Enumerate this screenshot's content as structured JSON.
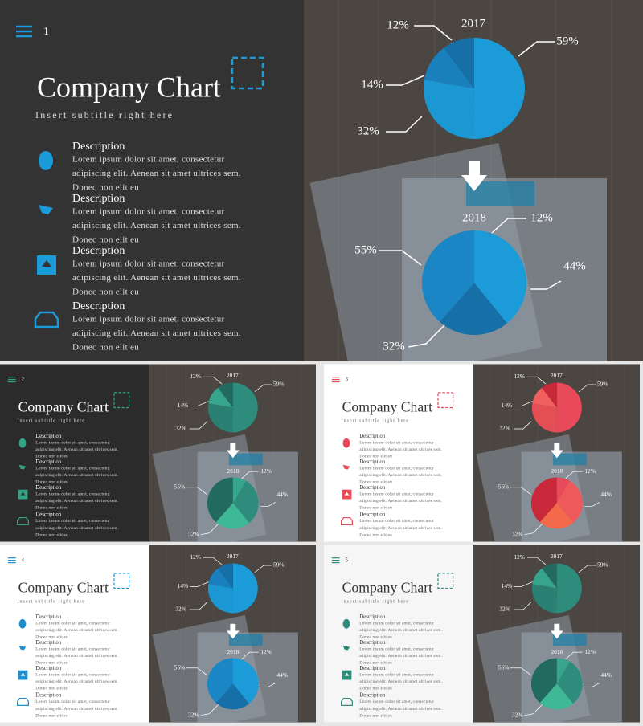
{
  "slides": [
    {
      "number": 1,
      "title": "Company Chart",
      "subtitle": "Insert subtitle right here",
      "items": [
        {
          "heading": "Description",
          "lines": [
            "Lorem ipsum dolor sit amet, consectetur",
            "adipiscing elit. Aenean sit amet ultrices sem.",
            "Donec non elit eu"
          ]
        },
        {
          "heading": "Description",
          "lines": [
            "Lorem ipsum dolor sit amet, consectetur",
            "adipiscing elit. Aenean sit amet ultrices sem.",
            "Donec non elit eu"
          ]
        },
        {
          "heading": "Description",
          "lines": [
            "Lorem ipsum dolor sit amet, consectetur",
            "adipiscing elit. Aenean sit amet ultrices sem.",
            "Donec non elit eu"
          ]
        },
        {
          "heading": "Description",
          "lines": [
            "Lorem ipsum dolor sit amet, consectetur",
            "adipiscing elit. Aenean sit amet ultrices sem.",
            "Donec non elit eu"
          ]
        }
      ],
      "charts": [
        {
          "type": "pie",
          "title": "2017",
          "values": [
            59,
            32,
            14,
            12
          ],
          "value_labels": [
            "59%",
            "32%",
            "14%",
            "12%"
          ],
          "colors": [
            "#1b9cd8",
            "#1b97d3",
            "#1a7fbd",
            "#166fa6"
          ]
        },
        {
          "type": "pie",
          "title": "2018",
          "values": [
            12,
            44,
            32,
            55
          ],
          "value_labels": [
            "12%",
            "44%",
            "32%",
            "55%"
          ],
          "colors": [
            "#1b9cd8",
            "#1b9cd8",
            "#166fa6",
            "#1b86c6"
          ]
        }
      ]
    },
    {
      "number": 2,
      "title": "Company Chart",
      "subtitle": "Insert subtitle right here",
      "items": [
        {
          "heading": "Description",
          "lines": [
            "Lorem ipsum dolor sit amet, consectetur",
            "adipiscing elit. Aenean sit amet ultrices sem.",
            "Donec non elit eu"
          ]
        },
        {
          "heading": "Description",
          "lines": [
            "Lorem ipsum dolor sit amet, consectetur",
            "adipiscing elit. Aenean sit amet ultrices sem.",
            "Donec non elit eu"
          ]
        },
        {
          "heading": "Description",
          "lines": [
            "Lorem ipsum dolor sit amet, consectetur",
            "adipiscing elit. Aenean sit amet ultrices sem.",
            "Donec non elit eu"
          ]
        },
        {
          "heading": "Description",
          "lines": [
            "Lorem ipsum dolor sit amet, consectetur",
            "adipiscing elit. Aenean sit amet ultrices sem.",
            "Donec non elit eu"
          ]
        }
      ],
      "charts": [
        {
          "type": "pie",
          "title": "2017",
          "values": [
            59,
            32,
            14,
            12
          ],
          "value_labels": [
            "59%",
            "32%",
            "14%",
            "12%"
          ],
          "colors": [
            "#2e8c7c",
            "#2a8072",
            "#37a58d",
            "#226a5f"
          ]
        },
        {
          "type": "pie",
          "title": "2018",
          "values": [
            12,
            44,
            32,
            55
          ],
          "value_labels": [
            "12%",
            "44%",
            "32%",
            "55%"
          ],
          "colors": [
            "#37a58d",
            "#2e8c7c",
            "#3fb896",
            "#226a5f"
          ]
        }
      ]
    },
    {
      "number": 3,
      "title": "Company Chart",
      "subtitle": "Insert subtitle right here",
      "items": [
        {
          "heading": "Description",
          "lines": [
            "Lorem ipsum dolor sit amet, consectetur",
            "adipiscing elit. Aenean sit amet ultrices sem.",
            "Donec non elit eu"
          ]
        },
        {
          "heading": "Description",
          "lines": [
            "Lorem ipsum dolor sit amet, consectetur",
            "adipiscing elit. Aenean sit amet ultrices sem.",
            "Donec non elit eu"
          ]
        },
        {
          "heading": "Description",
          "lines": [
            "Lorem ipsum dolor sit amet, consectetur",
            "adipiscing elit. Aenean sit amet ultrices sem.",
            "Donec non elit eu"
          ]
        },
        {
          "heading": "Description",
          "lines": [
            "Lorem ipsum dolor sit amet, consectetur",
            "adipiscing elit. Aenean sit amet ultrices sem.",
            "Donec non elit eu"
          ]
        }
      ],
      "charts": [
        {
          "type": "pie",
          "title": "2017",
          "values": [
            59,
            32,
            14,
            12
          ],
          "value_labels": [
            "59%",
            "32%",
            "14%",
            "12%"
          ],
          "colors": [
            "#e84a5a",
            "#e44f55",
            "#f0605f",
            "#c8283a"
          ]
        },
        {
          "type": "pie",
          "title": "2018",
          "values": [
            12,
            44,
            32,
            55
          ],
          "value_labels": [
            "12%",
            "44%",
            "32%",
            "55%"
          ],
          "colors": [
            "#e84a5a",
            "#ee5a5a",
            "#f36a4a",
            "#c8283a"
          ]
        }
      ]
    },
    {
      "number": 4,
      "title": "Company Chart",
      "subtitle": "Insert subtitle right here",
      "items": [
        {
          "heading": "Description",
          "lines": [
            "Lorem ipsum dolor sit amet, consectetur",
            "adipiscing elit. Aenean sit amet ultrices sem.",
            "Donec non elit eu"
          ]
        },
        {
          "heading": "Description",
          "lines": [
            "Lorem ipsum dolor sit amet, consectetur",
            "adipiscing elit. Aenean sit amet ultrices sem.",
            "Donec non elit eu"
          ]
        },
        {
          "heading": "Description",
          "lines": [
            "Lorem ipsum dolor sit amet, consectetur",
            "adipiscing elit. Aenean sit amet ultrices sem.",
            "Donec non elit eu"
          ]
        },
        {
          "heading": "Description",
          "lines": [
            "Lorem ipsum dolor sit amet, consectetur",
            "adipiscing elit. Aenean sit amet ultrices sem.",
            "Donec non elit eu"
          ]
        }
      ],
      "charts": [
        {
          "type": "pie",
          "title": "2017",
          "values": [
            59,
            32,
            14,
            12
          ],
          "value_labels": [
            "59%",
            "32%",
            "14%",
            "12%"
          ],
          "colors": [
            "#1b9cd8",
            "#1b97d3",
            "#1a7fbd",
            "#166fa6"
          ]
        },
        {
          "type": "pie",
          "title": "2018",
          "values": [
            12,
            44,
            32,
            55
          ],
          "value_labels": [
            "12%",
            "44%",
            "32%",
            "55%"
          ],
          "colors": [
            "#1b9cd8",
            "#1b9cd8",
            "#166fa6",
            "#1b86c6"
          ]
        }
      ]
    },
    {
      "number": 5,
      "title": "Company Chart",
      "subtitle": "Insert subtitle right here",
      "items": [
        {
          "heading": "Description",
          "lines": [
            "Lorem ipsum dolor sit amet, consectetur",
            "adipiscing elit. Aenean sit amet ultrices sem.",
            "Donec non elit eu"
          ]
        },
        {
          "heading": "Description",
          "lines": [
            "Lorem ipsum dolor sit amet, consectetur",
            "adipiscing elit. Aenean sit amet ultrices sem.",
            "Donec non elit eu"
          ]
        },
        {
          "heading": "Description",
          "lines": [
            "Lorem ipsum dolor sit amet, consectetur",
            "adipiscing elit. Aenean sit amet ultrices sem.",
            "Donec non elit eu"
          ]
        },
        {
          "heading": "Description",
          "lines": [
            "Lorem ipsum dolor sit amet, consectetur",
            "adipiscing elit. Aenean sit amet ultrices sem.",
            "Donec non elit eu"
          ]
        }
      ],
      "charts": [
        {
          "type": "pie",
          "title": "2017",
          "values": [
            59,
            32,
            14,
            12
          ],
          "value_labels": [
            "59%",
            "32%",
            "14%",
            "12%"
          ],
          "colors": [
            "#2e8c7c",
            "#2a8072",
            "#37a58d",
            "#226a5f"
          ]
        },
        {
          "type": "pie",
          "title": "2018",
          "values": [
            12,
            44,
            32,
            55
          ],
          "value_labels": [
            "12%",
            "44%",
            "32%",
            "55%"
          ],
          "colors": [
            "#37a58d",
            "#2e8c7c",
            "#3fb896",
            "#226a5f"
          ]
        }
      ]
    }
  ]
}
